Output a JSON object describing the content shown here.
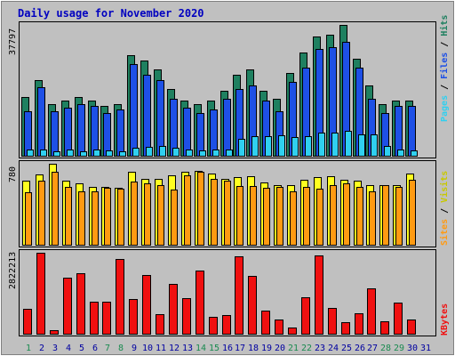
{
  "chart_data": {
    "type": "bar",
    "title": "Daily usage for November 2020",
    "categories": [
      "1",
      "2",
      "3",
      "4",
      "5",
      "6",
      "7",
      "8",
      "9",
      "10",
      "11",
      "12",
      "13",
      "14",
      "15",
      "16",
      "17",
      "18",
      "19",
      "20",
      "21",
      "22",
      "23",
      "24",
      "25",
      "26",
      "27",
      "28",
      "29",
      "30",
      "31"
    ],
    "weekend_days": [
      "1",
      "7",
      "8",
      "14",
      "15",
      "21",
      "22",
      "28",
      "29"
    ],
    "panels": [
      {
        "id": "hits-files-pages",
        "max_label": "37797",
        "max": 37797,
        "series": [
          {
            "name": "Hits",
            "color": "#1f8060",
            "values": [
              17000,
              22000,
              15000,
              16000,
              17000,
              16000,
              14500,
              15000,
              29000,
              27500,
              25000,
              19500,
              16000,
              15000,
              16000,
              19000,
              23500,
              25000,
              19000,
              16500,
              24000,
              30000,
              34500,
              35000,
              37797,
              28000,
              20500,
              15000,
              16000,
              16000,
              0
            ]
          },
          {
            "name": "Files",
            "color": "#1e50e6",
            "values": [
              13000,
              20000,
              13000,
              14000,
              15000,
              14500,
              12500,
              13500,
              26500,
              23500,
              22000,
              16500,
              14000,
              12500,
              13500,
              16500,
              19500,
              20500,
              16000,
              13000,
              21500,
              25500,
              31000,
              31500,
              33000,
              25500,
              16500,
              12500,
              14500,
              14500,
              0
            ]
          },
          {
            "name": "Pages",
            "color": "#30d0f0",
            "values": [
              2000,
              2000,
              1500,
              2000,
              1500,
              2000,
              1800,
              1500,
              2500,
              2800,
              3000,
              2500,
              2000,
              1800,
              2000,
              2000,
              5000,
              6000,
              6000,
              6200,
              5500,
              6000,
              7000,
              6800,
              7500,
              6500,
              6500,
              3000,
              2000,
              1800,
              0
            ]
          }
        ]
      },
      {
        "id": "visits-sites",
        "max_label": "780",
        "max": 780,
        "series": [
          {
            "name": "Visits",
            "color": "#ffff20",
            "values": [
              620,
              680,
              780,
              620,
              590,
              560,
              560,
              550,
              700,
              640,
              640,
              670,
              700,
              710,
              690,
              640,
              650,
              660,
              600,
              580,
              580,
              630,
              650,
              660,
              630,
              620,
              580,
              580,
              580,
              690,
              0
            ]
          },
          {
            "name": "Sites",
            "color": "#ff9a12",
            "values": [
              510,
              620,
              700,
              560,
              520,
              520,
              550,
              540,
              610,
              590,
              580,
              530,
              670,
              700,
              640,
              620,
              570,
              570,
              550,
              560,
              520,
              560,
              540,
              580,
              590,
              560,
              520,
              580,
              560,
              630,
              0
            ]
          }
        ]
      },
      {
        "id": "kbytes",
        "max_label": "2822213",
        "max": 2822213,
        "series": [
          {
            "name": "KBytes",
            "color": "#f01010",
            "values": [
              880000,
              2822213,
              160000,
              1950000,
              2120000,
              1150000,
              1150000,
              2600000,
              1240000,
              2050000,
              700000,
              1760000,
              1260000,
              2200000,
              600000,
              670000,
              2710000,
              2030000,
              830000,
              520000,
              260000,
              1280000,
              2720000,
              920000,
              420000,
              740000,
              1600000,
              450000,
              1110000,
              520000,
              0
            ]
          }
        ]
      }
    ]
  },
  "legend_labels": {
    "pages": "Pages",
    "files": "Files",
    "hits": "Hits",
    "sites": "Sites",
    "visits": "Visits",
    "kbytes": "KBytes",
    "separator": " / "
  },
  "colors": {
    "page_bg": "#c0c0c0",
    "plot_bg": "#c0c0c0",
    "title_color": "#0000c0",
    "axis_label_color": "#000000",
    "weekend_color": "#1a8a50",
    "weekday_color": "#0000a0"
  }
}
